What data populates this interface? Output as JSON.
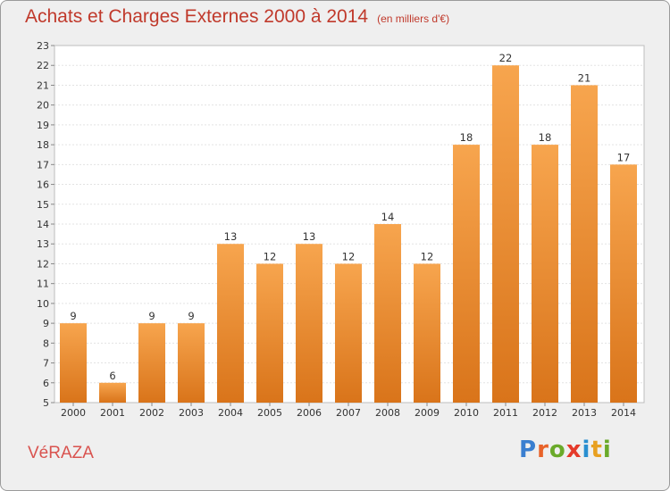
{
  "header": {
    "title": "Achats et Charges Externes 2000 à 2014",
    "subtitle": "(en milliers d'€)"
  },
  "footer": {
    "town": "VéRAZA",
    "logo_letters": [
      "P",
      "r",
      "o",
      "x",
      "i",
      "t",
      "i"
    ],
    "logo_colors": [
      "#3a7fd0",
      "#e8632a",
      "#6aaa2a",
      "#e53a2a",
      "#2a8fd0",
      "#e8a020",
      "#6aaa2a"
    ]
  },
  "chart_data": {
    "type": "bar",
    "title": "Achats et Charges Externes 2000 à 2014",
    "subtitle": "(en milliers d'€)",
    "categories": [
      "2000",
      "2001",
      "2002",
      "2003",
      "2004",
      "2005",
      "2006",
      "2007",
      "2008",
      "2009",
      "2010",
      "2011",
      "2012",
      "2013",
      "2014"
    ],
    "values": [
      9,
      6,
      9,
      9,
      13,
      12,
      13,
      12,
      14,
      12,
      18,
      22,
      18,
      21,
      17
    ],
    "ylim": [
      5,
      23
    ],
    "yticks": [
      5,
      6,
      7,
      8,
      9,
      10,
      11,
      12,
      13,
      14,
      15,
      16,
      17,
      18,
      19,
      20,
      21,
      22,
      23
    ],
    "grid": true,
    "bar_color_top": "#f7a54e",
    "bar_color_bottom": "#d9741a"
  }
}
